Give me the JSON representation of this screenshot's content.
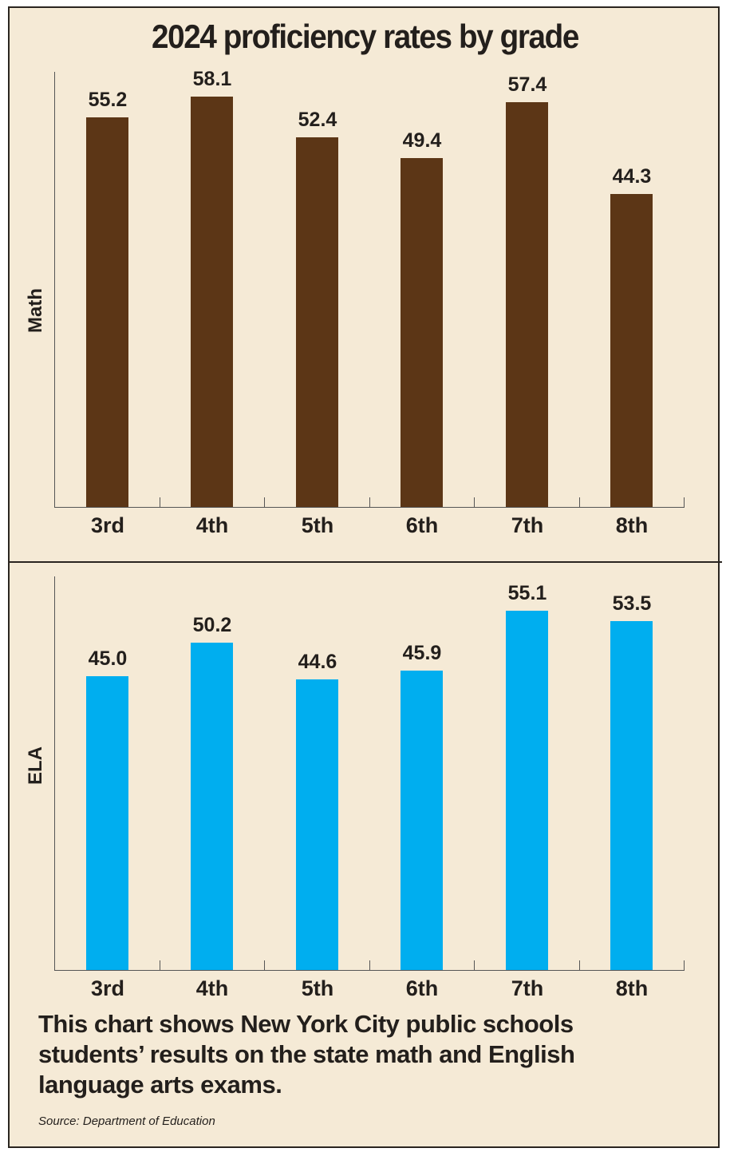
{
  "chart_data": [
    {
      "type": "bar",
      "title": "2024 proficiency rates by grade",
      "ylabel": "Math",
      "xlabel": "",
      "categories": [
        "3rd",
        "4th",
        "5th",
        "6th",
        "7th",
        "8th"
      ],
      "values": [
        55.2,
        58.1,
        52.4,
        49.4,
        57.4,
        44.3
      ],
      "labels": [
        "55.2",
        "58.1",
        "52.4",
        "49.4",
        "57.4",
        "44.3"
      ],
      "color": "#5c3616",
      "grid": false,
      "ylim": [
        0,
        60
      ]
    },
    {
      "type": "bar",
      "ylabel": "ELA",
      "xlabel": "",
      "categories": [
        "3rd",
        "4th",
        "5th",
        "6th",
        "7th",
        "8th"
      ],
      "values": [
        45.0,
        50.2,
        44.6,
        45.9,
        55.1,
        53.5
      ],
      "labels": [
        "45.0",
        "50.2",
        "44.6",
        "45.9",
        "55.1",
        "53.5"
      ],
      "color": "#00aeef",
      "grid": false,
      "ylim": [
        0,
        60
      ]
    }
  ],
  "title": "2024 proficiency rates by grade",
  "note": "This chart shows New York City public schools students’ results on the state math and English language arts exams.",
  "source": "Source: Department of Education"
}
